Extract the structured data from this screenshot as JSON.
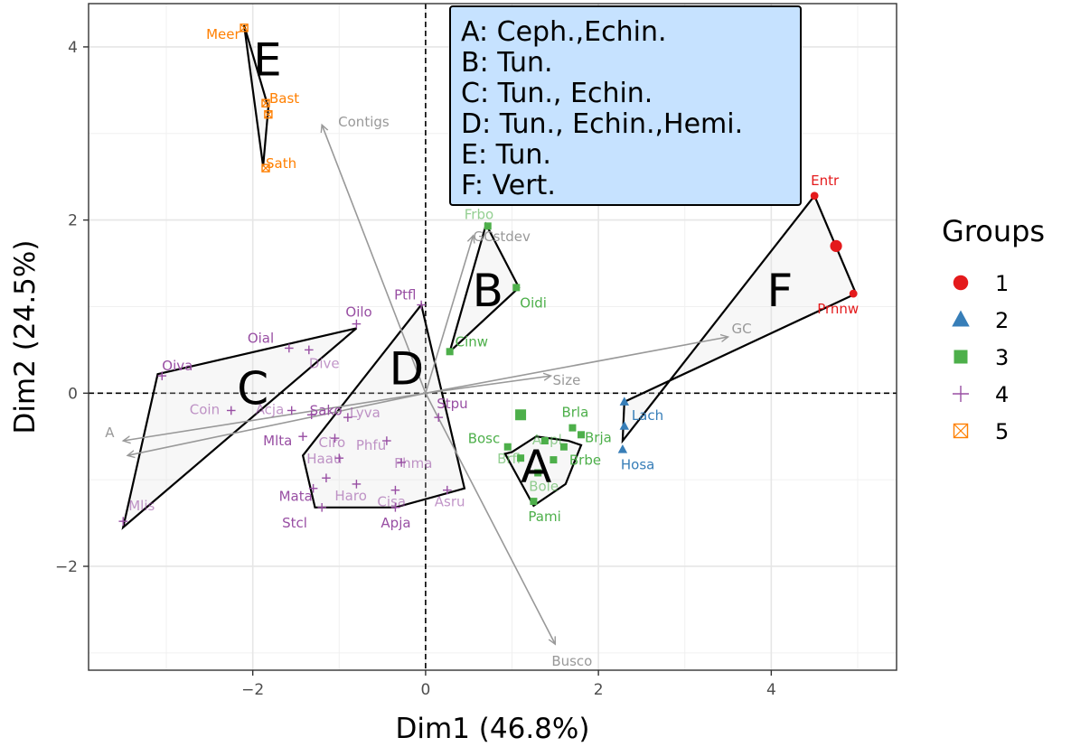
{
  "chart_data": {
    "type": "scatter",
    "xlabel": "Dim1 (46.8%)",
    "ylabel": "Dim2 (24.5%)",
    "xlim": [
      -3.9,
      5.45
    ],
    "ylim": [
      -3.2,
      4.5
    ],
    "xticks": [
      -2,
      0,
      2,
      4
    ],
    "yticks": [
      -2,
      0,
      2,
      4
    ],
    "tick_labels": {
      "x": [
        "−2",
        "0",
        "2",
        "4"
      ],
      "y": [
        "−2",
        "0",
        "2",
        "4"
      ]
    },
    "grid": true,
    "reference_lines": {
      "x": 0,
      "y": 0,
      "style": "dashed"
    },
    "colors": {
      "1": "#e41a1c",
      "2": "#377eb8",
      "3": "#4daf4a",
      "4": "#984ea3",
      "5": "#ff7f00",
      "variable_arrows": "#999999",
      "annotation_fill": "#c6e2ff",
      "hull_fill": "#e0e0e0"
    },
    "legend": {
      "title": "Groups",
      "position": "right",
      "entries": [
        {
          "label": "1",
          "shape": "circle",
          "color": "#e41a1c"
        },
        {
          "label": "2",
          "shape": "triangle",
          "color": "#377eb8"
        },
        {
          "label": "3",
          "shape": "square",
          "color": "#4daf4a"
        },
        {
          "label": "4",
          "shape": "plus",
          "color": "#984ea3"
        },
        {
          "label": "5",
          "shape": "square-x",
          "color": "#ff7f00"
        }
      ]
    },
    "annotation": [
      "A: Ceph.,Echin.",
      "B: Tun.",
      "C: Tun., Echin.",
      "D: Tun., Echin.,Hemi.",
      "E: Tun.",
      "F: Vert."
    ],
    "variables": [
      {
        "name": "Contigs",
        "x": -1.2,
        "y": 3.1
      },
      {
        "name": "GCstdev",
        "x": 0.55,
        "y": 1.82
      },
      {
        "name": "GC",
        "x": 3.5,
        "y": 0.65
      },
      {
        "name": "Size",
        "x": 1.45,
        "y": 0.2
      },
      {
        "name": "A",
        "x": -3.5,
        "y": -0.55
      },
      {
        "name": "",
        "x": -3.45,
        "y": -0.72
      },
      {
        "name": "Busco",
        "x": 1.5,
        "y": -2.9
      }
    ],
    "clusters": [
      {
        "letter": "A",
        "lx": 1.28,
        "ly": -0.85,
        "hull": [
          [
            1.0,
            -0.68
          ],
          [
            1.28,
            -0.5
          ],
          [
            1.65,
            -0.55
          ],
          [
            1.8,
            -0.6
          ],
          [
            1.62,
            -1.05
          ],
          [
            1.25,
            -1.3
          ],
          [
            0.92,
            -0.7
          ]
        ]
      },
      {
        "letter": "B",
        "lx": 0.72,
        "ly": 1.18,
        "hull": [
          [
            0.28,
            0.48
          ],
          [
            0.7,
            1.95
          ],
          [
            1.08,
            1.22
          ]
        ]
      },
      {
        "letter": "C",
        "lx": -2.0,
        "ly": 0.05,
        "hull": [
          [
            -3.1,
            0.22
          ],
          [
            -0.8,
            0.75
          ],
          [
            -3.5,
            -1.55
          ]
        ]
      },
      {
        "letter": "D",
        "lx": -0.22,
        "ly": 0.28,
        "hull": [
          [
            -1.42,
            -0.72
          ],
          [
            -0.05,
            1.02
          ],
          [
            0.45,
            -1.1
          ],
          [
            -0.35,
            -1.32
          ],
          [
            -1.28,
            -1.32
          ]
        ]
      },
      {
        "letter": "E",
        "lx": -1.83,
        "ly": 3.85,
        "hull": [
          [
            -2.1,
            4.25
          ],
          [
            -1.82,
            3.3
          ],
          [
            -1.88,
            2.62
          ]
        ]
      },
      {
        "letter": "F",
        "lx": 4.1,
        "ly": 1.18,
        "hull": [
          [
            2.28,
            -0.55
          ],
          [
            4.5,
            2.28
          ],
          [
            4.98,
            1.15
          ],
          [
            2.3,
            -0.1
          ]
        ]
      }
    ],
    "series": [
      {
        "group": "1",
        "points": [
          {
            "label": "Entr",
            "x": 4.5,
            "y": 2.28
          },
          {
            "label": "",
            "x": 4.75,
            "y": 1.7
          },
          {
            "label": "Prnnw",
            "x": 4.95,
            "y": 1.15
          }
        ]
      },
      {
        "group": "2",
        "points": [
          {
            "label": "Lach",
            "x": 2.3,
            "y": -0.1
          },
          {
            "label": "",
            "x": 2.3,
            "y": -0.38
          },
          {
            "label": "Hosa",
            "x": 2.28,
            "y": -0.65
          }
        ]
      },
      {
        "group": "3",
        "points": [
          {
            "label": "Frbo",
            "x": 0.72,
            "y": 1.93
          },
          {
            "label": "Oidi",
            "x": 1.05,
            "y": 1.22
          },
          {
            "label": "Cinw",
            "x": 0.28,
            "y": 0.48
          },
          {
            "label": "Brla",
            "x": 1.7,
            "y": -0.4
          },
          {
            "label": "Brja",
            "x": 1.8,
            "y": -0.48
          },
          {
            "label": "Aepl",
            "x": 1.38,
            "y": -0.55
          },
          {
            "label": "Brbe",
            "x": 1.6,
            "y": -0.62
          },
          {
            "label": "Bosc",
            "x": 0.95,
            "y": -0.62
          },
          {
            "label": "Brfl",
            "x": 1.1,
            "y": -0.75
          },
          {
            "label": "",
            "x": 1.48,
            "y": -0.77
          },
          {
            "label": "Bole",
            "x": 1.3,
            "y": -0.92
          },
          {
            "label": "Pami",
            "x": 1.25,
            "y": -1.25
          },
          {
            "label": "",
            "x": 1.1,
            "y": -0.25
          }
        ]
      },
      {
        "group": "4",
        "points": [
          {
            "label": "Oilo",
            "x": -0.8,
            "y": 0.8
          },
          {
            "label": "Ptfl",
            "x": -0.05,
            "y": 1.02
          },
          {
            "label": "Oial",
            "x": -1.58,
            "y": 0.52
          },
          {
            "label": "Dive",
            "x": -1.35,
            "y": 0.5
          },
          {
            "label": "Oiva",
            "x": -3.05,
            "y": 0.2
          },
          {
            "label": "Coin",
            "x": -2.25,
            "y": -0.2
          },
          {
            "label": "Acja",
            "x": -1.55,
            "y": -0.2
          },
          {
            "label": "Sako",
            "x": -1.32,
            "y": -0.25
          },
          {
            "label": "Lyva",
            "x": -0.9,
            "y": -0.28
          },
          {
            "label": "Stpu",
            "x": 0.15,
            "y": -0.28
          },
          {
            "label": "Mlta",
            "x": -1.42,
            "y": -0.5
          },
          {
            "label": "Ciro",
            "x": -1.05,
            "y": -0.52
          },
          {
            "label": "Phfu",
            "x": -0.45,
            "y": -0.55
          },
          {
            "label": "Haau",
            "x": -1.0,
            "y": -0.75
          },
          {
            "label": "Phma",
            "x": -0.28,
            "y": -0.8
          },
          {
            "label": "",
            "x": -1.15,
            "y": -0.98
          },
          {
            "label": "Mata",
            "x": -1.3,
            "y": -1.1
          },
          {
            "label": "Haro",
            "x": -0.8,
            "y": -1.05
          },
          {
            "label": "Cisa",
            "x": -0.35,
            "y": -1.12
          },
          {
            "label": "Asru",
            "x": 0.25,
            "y": -1.12
          },
          {
            "label": "Mlis",
            "x": -3.5,
            "y": -1.48
          },
          {
            "label": "Stcl",
            "x": -1.2,
            "y": -1.32
          },
          {
            "label": "Apja",
            "x": -0.35,
            "y": -1.32
          }
        ]
      },
      {
        "group": "5",
        "points": [
          {
            "label": "Meer",
            "x": -2.1,
            "y": 4.22
          },
          {
            "label": "Bast",
            "x": -1.85,
            "y": 3.35
          },
          {
            "label": "",
            "x": -1.82,
            "y": 3.22
          },
          {
            "label": "Sath",
            "x": -1.85,
            "y": 2.6
          }
        ]
      }
    ]
  }
}
